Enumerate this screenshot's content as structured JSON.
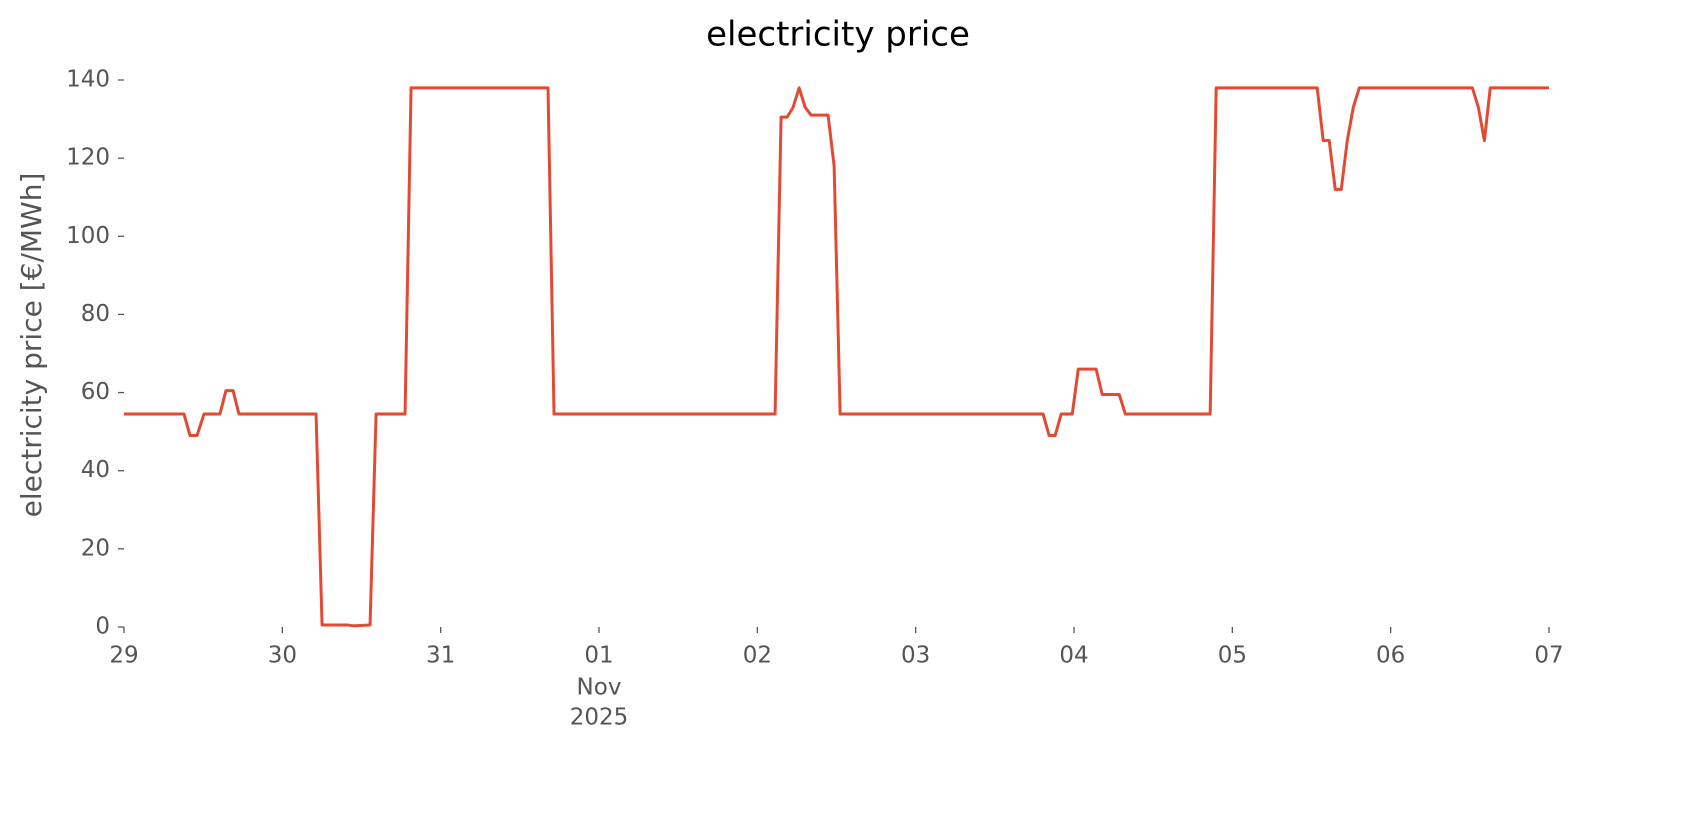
{
  "chart_data": {
    "type": "line",
    "title": "electricity price",
    "ylabel": "electricity price [€/MWh]",
    "x": [
      0,
      0.379,
      0.417,
      0.461,
      0.505,
      0.606,
      0.644,
      0.689,
      0.726,
      1.213,
      1.251,
      1.415,
      1.447,
      1.554,
      1.592,
      1.775,
      1.813,
      2.678,
      2.716,
      4.112,
      4.15,
      4.188,
      4.226,
      4.264,
      4.302,
      4.34,
      4.447,
      4.485,
      4.523,
      5.805,
      5.843,
      5.881,
      5.919,
      5.989,
      6.027,
      6.14,
      6.178,
      6.286,
      6.324,
      6.86,
      6.898,
      7.536,
      7.574,
      7.612,
      7.65,
      7.688,
      7.726,
      7.764,
      7.802,
      8.516,
      8.554,
      8.592,
      8.629,
      9
    ],
    "series": [
      {
        "name": "electricity price",
        "color": "#e24a33",
        "values": [
          54.5,
          54.5,
          49,
          49,
          54.5,
          54.5,
          60.5,
          60.5,
          54.5,
          54.5,
          0.5,
          0.5,
          0.3,
          0.5,
          54.5,
          54.5,
          138,
          138,
          54.5,
          54.5,
          130.5,
          130.5,
          133,
          138,
          133,
          131,
          131,
          118,
          54.5,
          54.5,
          49,
          49,
          54.5,
          54.5,
          66,
          66,
          59.5,
          59.5,
          54.5,
          54.5,
          138,
          138,
          124.5,
          124.5,
          112,
          112,
          124.5,
          133,
          138,
          138,
          133,
          124.5,
          138,
          138
        ]
      }
    ],
    "xlim": [
      0,
      9
    ],
    "xticks": [
      {
        "value": 0,
        "label": "29"
      },
      {
        "value": 1,
        "label": "30"
      },
      {
        "value": 2,
        "label": "31"
      },
      {
        "value": 3,
        "label": "01",
        "sublabel": [
          "Nov",
          "2025"
        ]
      },
      {
        "value": 4,
        "label": "02"
      },
      {
        "value": 5,
        "label": "03"
      },
      {
        "value": 6,
        "label": "04"
      },
      {
        "value": 7,
        "label": "05"
      },
      {
        "value": 8,
        "label": "06"
      },
      {
        "value": 9,
        "label": "07"
      }
    ],
    "ylim": [
      0,
      140
    ],
    "yticks": [
      0,
      20,
      40,
      60,
      80,
      100,
      120,
      140
    ],
    "grid": false
  }
}
